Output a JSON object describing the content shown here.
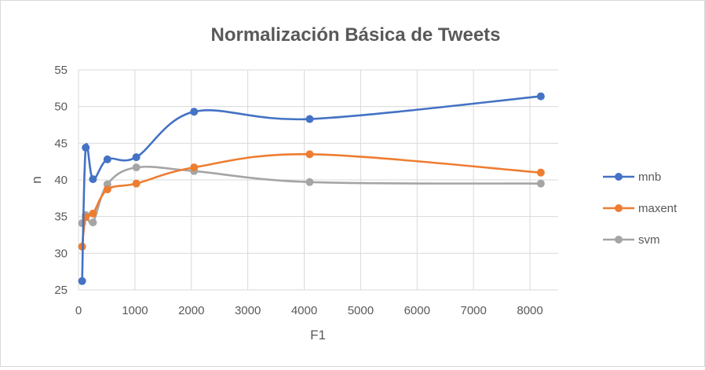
{
  "chart_data": {
    "type": "line",
    "title": "Normalización Básica de Tweets",
    "xlabel": "F1",
    "ylabel": "n",
    "xlim": [
      0,
      8500
    ],
    "ylim": [
      25,
      55
    ],
    "xticks": [
      "0",
      "1000",
      "2000",
      "3000",
      "4000",
      "5000",
      "6000",
      "7000",
      "8000"
    ],
    "yticks": [
      "25",
      "30",
      "35",
      "40",
      "45",
      "50",
      "55"
    ],
    "grid": true,
    "legend_position": "right",
    "x": [
      64,
      128,
      256,
      512,
      1024,
      2048,
      4096,
      8192
    ],
    "series": [
      {
        "name": "mnb",
        "color": "#4472c4",
        "values": [
          26.2,
          44.4,
          40.1,
          42.8,
          43.1,
          49.3,
          48.3,
          51.4
        ]
      },
      {
        "name": "maxent",
        "color": "#ed7d31",
        "values": [
          30.9,
          34.9,
          35.4,
          38.7,
          39.5,
          41.7,
          43.5,
          41.0
        ]
      },
      {
        "name": "svm",
        "color": "#a5a5a5",
        "values": [
          34.1,
          35.2,
          34.2,
          39.4,
          41.7,
          41.2,
          39.7,
          39.5
        ]
      }
    ]
  }
}
